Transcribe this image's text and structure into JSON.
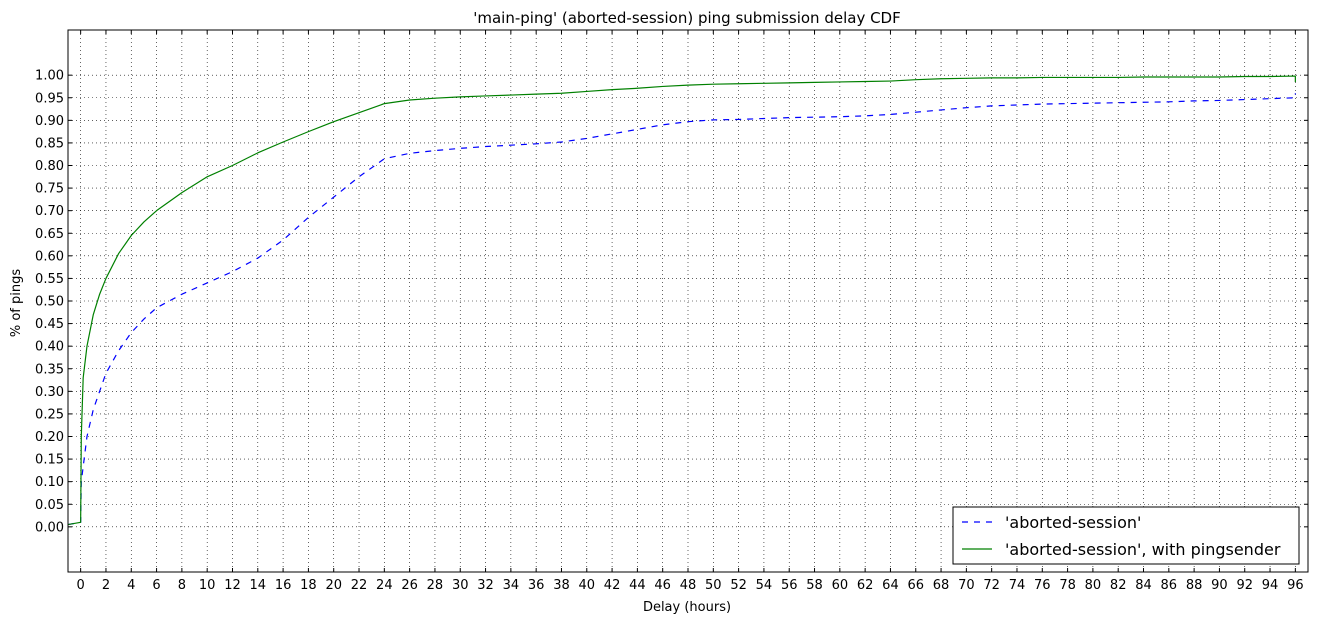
{
  "chart_data": {
    "type": "line",
    "title": "'main-ping' (aborted-session) ping submission delay CDF",
    "xlabel": "Delay (hours)",
    "ylabel": "% of pings",
    "xlim": [
      -1,
      97
    ],
    "ylim": [
      -0.1,
      1.1
    ],
    "x_ticks": [
      0,
      2,
      4,
      6,
      8,
      10,
      12,
      14,
      16,
      18,
      20,
      22,
      24,
      26,
      28,
      30,
      32,
      34,
      36,
      38,
      40,
      42,
      44,
      46,
      48,
      50,
      52,
      54,
      56,
      58,
      60,
      62,
      64,
      66,
      68,
      70,
      72,
      74,
      76,
      78,
      80,
      82,
      84,
      86,
      88,
      90,
      92,
      94,
      96
    ],
    "y_ticks": [
      "0.00",
      "0.05",
      "0.10",
      "0.15",
      "0.20",
      "0.25",
      "0.30",
      "0.35",
      "0.40",
      "0.45",
      "0.50",
      "0.55",
      "0.60",
      "0.65",
      "0.70",
      "0.75",
      "0.80",
      "0.85",
      "0.90",
      "0.95",
      "1.00"
    ],
    "grid": true,
    "legend_position": "lower-right",
    "series": [
      {
        "name": "'aborted-session'",
        "color": "#0000ff",
        "style": "dashed",
        "x": [
          -1,
          0,
          0.05,
          0.5,
          1,
          1.5,
          2,
          3,
          4,
          5,
          6,
          8,
          10,
          12,
          14,
          16,
          18,
          20,
          22,
          24,
          26,
          28,
          30,
          32,
          34,
          36,
          38,
          40,
          42,
          44,
          46,
          48,
          50,
          52,
          54,
          56,
          58,
          60,
          62,
          64,
          66,
          68,
          70,
          72,
          74,
          76,
          78,
          80,
          82,
          84,
          86,
          88,
          90,
          92,
          94,
          96,
          96
        ],
        "y": [
          0.005,
          0.01,
          0.1,
          0.2,
          0.26,
          0.3,
          0.34,
          0.39,
          0.43,
          0.46,
          0.485,
          0.515,
          0.54,
          0.565,
          0.595,
          0.635,
          0.685,
          0.73,
          0.775,
          0.815,
          0.827,
          0.833,
          0.838,
          0.842,
          0.845,
          0.848,
          0.852,
          0.86,
          0.87,
          0.88,
          0.89,
          0.897,
          0.901,
          0.902,
          0.904,
          0.906,
          0.907,
          0.908,
          0.91,
          0.913,
          0.918,
          0.923,
          0.928,
          0.932,
          0.934,
          0.936,
          0.937,
          0.938,
          0.939,
          0.94,
          0.941,
          0.943,
          0.944,
          0.946,
          0.948,
          0.95,
          0.96
        ]
      },
      {
        "name": "'aborted-session', with pingsender",
        "color": "#008000",
        "style": "solid",
        "x": [
          -1,
          0,
          0.05,
          0.2,
          0.5,
          1,
          1.5,
          2,
          3,
          4,
          5,
          6,
          8,
          10,
          12,
          14,
          16,
          18,
          20,
          22,
          24,
          26,
          28,
          30,
          32,
          34,
          36,
          38,
          40,
          42,
          44,
          46,
          48,
          50,
          52,
          54,
          56,
          58,
          60,
          62,
          64,
          66,
          68,
          70,
          72,
          74,
          76,
          78,
          80,
          82,
          84,
          86,
          88,
          90,
          92,
          94,
          96,
          96
        ],
        "y": [
          0.005,
          0.01,
          0.2,
          0.33,
          0.4,
          0.47,
          0.515,
          0.55,
          0.605,
          0.645,
          0.675,
          0.7,
          0.74,
          0.775,
          0.8,
          0.828,
          0.852,
          0.875,
          0.897,
          0.917,
          0.937,
          0.945,
          0.949,
          0.952,
          0.954,
          0.956,
          0.958,
          0.96,
          0.964,
          0.968,
          0.971,
          0.975,
          0.978,
          0.98,
          0.981,
          0.982,
          0.983,
          0.984,
          0.985,
          0.986,
          0.987,
          0.99,
          0.992,
          0.993,
          0.994,
          0.994,
          0.995,
          0.995,
          0.995,
          0.995,
          0.996,
          0.996,
          0.996,
          0.996,
          0.997,
          0.997,
          0.998,
          0.985
        ]
      }
    ]
  }
}
